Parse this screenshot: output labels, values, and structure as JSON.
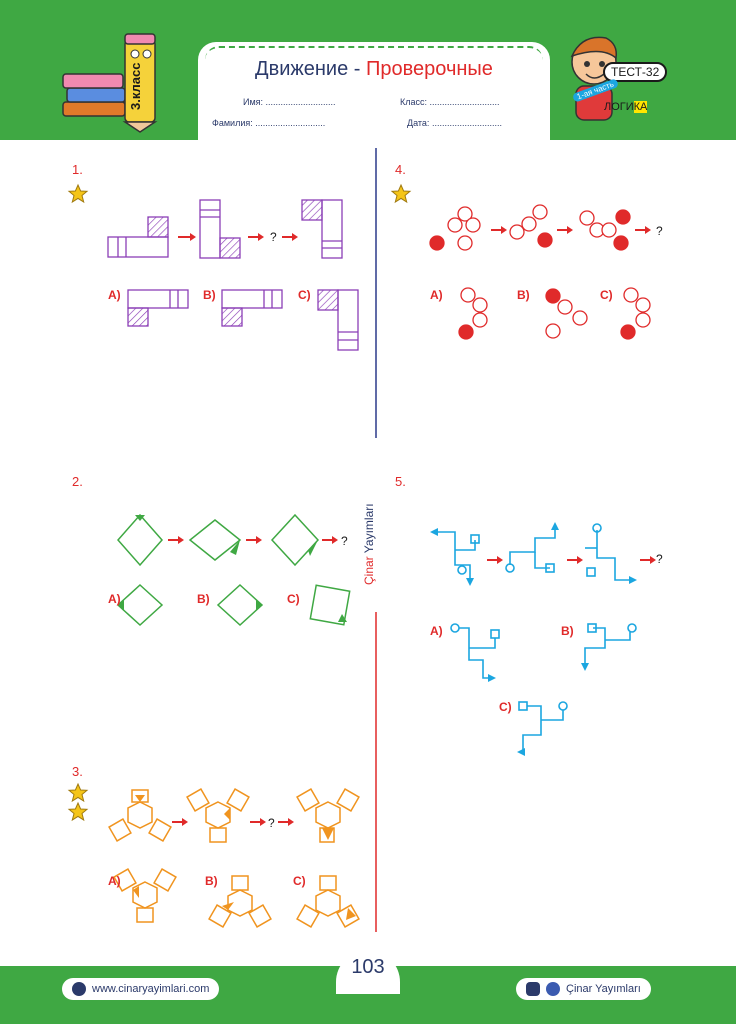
{
  "header": {
    "title_main": "Движение - ",
    "title_accent": "Проверочные",
    "name_label": "Имя:",
    "surname_label": "Фамилия:",
    "class_label": "Класс:",
    "date_label": "Дата:",
    "dots": "............................",
    "grade": "3.класс",
    "test": "ТЕСТ-32",
    "part": "1-ая часть",
    "logic_a": "ЛОГИ",
    "logic_b": "КА"
  },
  "questions": {
    "q1": "1.",
    "q2": "2.",
    "q3": "3.",
    "q4": "4.",
    "q5": "5."
  },
  "options": {
    "a": "A)",
    "b": "B)",
    "c": "C)"
  },
  "qmark": "?",
  "brand_vertical_a": "Çinar",
  "brand_vertical_b": "Yayımları",
  "footer": {
    "website": "www.cinaryayimlari.com",
    "page": "103",
    "social": "Çinar Yayımları"
  },
  "colors": {
    "green": "#3fa843",
    "red": "#e02a2a",
    "purple": "#8b3fb6",
    "orange": "#f0941f",
    "blue": "#1ba6e0",
    "navy": "#2b3a6a"
  }
}
